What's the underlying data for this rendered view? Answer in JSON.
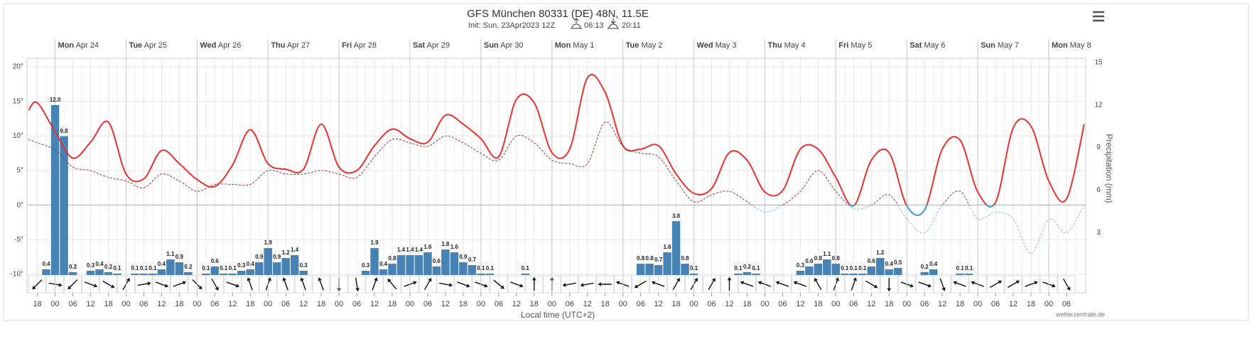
{
  "chart_data": {
    "type": "line",
    "title": "GFS München 80331 (DE) 48N, 11.5E",
    "subtitle": "Init: Sun, 23Apr2023 12Z",
    "sunrise": "06:13",
    "sunset": "20:11",
    "xlabel": "Local time (UTC+2)",
    "y2label": "Precipitation (mm)",
    "credit": "wetterzentrale.de",
    "xlim": [
      -9.5,
      348.5
    ],
    "ylim": [
      -10,
      20
    ],
    "y2lim": [
      0,
      15
    ],
    "yticks": [
      {
        "value": 20,
        "label": "20°"
      },
      {
        "value": 15,
        "label": "15°"
      },
      {
        "value": 10,
        "label": "10°"
      },
      {
        "value": 5,
        "label": "5°"
      },
      {
        "value": 0,
        "label": "0°"
      },
      {
        "value": -5,
        "label": "-5°"
      },
      {
        "value": -10,
        "label": "-10°"
      }
    ],
    "y2ticks": [
      3,
      6,
      9,
      12,
      15
    ],
    "grid": true,
    "days": [
      {
        "value": 0,
        "weekday": "Mon",
        "date": "Apr 24"
      },
      {
        "value": 24,
        "weekday": "Tue",
        "date": "Apr 25"
      },
      {
        "value": 48,
        "weekday": "Wed",
        "date": "Apr 26"
      },
      {
        "value": 72,
        "weekday": "Thu",
        "date": "Apr 27"
      },
      {
        "value": 96,
        "weekday": "Fri",
        "date": "Apr 28"
      },
      {
        "value": 120,
        "weekday": "Sat",
        "date": "Apr 29"
      },
      {
        "value": 144,
        "weekday": "Sun",
        "date": "Apr 30"
      },
      {
        "value": 168,
        "weekday": "Mon",
        "date": "May 1"
      },
      {
        "value": 192,
        "weekday": "Tue",
        "date": "May 2"
      },
      {
        "value": 216,
        "weekday": "Wed",
        "date": "May 3"
      },
      {
        "value": 240,
        "weekday": "Thu",
        "date": "May 4"
      },
      {
        "value": 264,
        "weekday": "Fri",
        "date": "May 5"
      },
      {
        "value": 288,
        "weekday": "Sat",
        "date": "May 6"
      },
      {
        "value": 312,
        "weekday": "Sun",
        "date": "May 7"
      },
      {
        "value": 336,
        "weekday": "Mon",
        "date": "May 8"
      }
    ],
    "xticks": [
      {
        "value": -6,
        "label": "18"
      },
      {
        "value": 0,
        "label": "00"
      },
      {
        "value": 6,
        "label": "06"
      },
      {
        "value": 12,
        "label": "12"
      },
      {
        "value": 18,
        "label": "18"
      },
      {
        "value": 24,
        "label": "00"
      },
      {
        "value": 30,
        "label": "06"
      },
      {
        "value": 36,
        "label": "12"
      },
      {
        "value": 42,
        "label": "18"
      },
      {
        "value": 48,
        "label": "00"
      },
      {
        "value": 54,
        "label": "06"
      },
      {
        "value": 60,
        "label": "12"
      },
      {
        "value": 66,
        "label": "18"
      },
      {
        "value": 72,
        "label": "00"
      },
      {
        "value": 78,
        "label": "06"
      },
      {
        "value": 84,
        "label": "12"
      },
      {
        "value": 90,
        "label": "18"
      },
      {
        "value": 96,
        "label": "00"
      },
      {
        "value": 102,
        "label": "06"
      },
      {
        "value": 108,
        "label": "12"
      },
      {
        "value": 114,
        "label": "18"
      },
      {
        "value": 120,
        "label": "00"
      },
      {
        "value": 126,
        "label": "06"
      },
      {
        "value": 132,
        "label": "12"
      },
      {
        "value": 138,
        "label": "18"
      },
      {
        "value": 144,
        "label": "00"
      },
      {
        "value": 150,
        "label": "06"
      },
      {
        "value": 156,
        "label": "12"
      },
      {
        "value": 162,
        "label": "18"
      },
      {
        "value": 168,
        "label": "00"
      },
      {
        "value": 174,
        "label": "06"
      },
      {
        "value": 180,
        "label": "12"
      },
      {
        "value": 186,
        "label": "18"
      },
      {
        "value": 192,
        "label": "00"
      },
      {
        "value": 198,
        "label": "06"
      },
      {
        "value": 204,
        "label": "12"
      },
      {
        "value": 210,
        "label": "18"
      },
      {
        "value": 216,
        "label": "00"
      },
      {
        "value": 222,
        "label": "06"
      },
      {
        "value": 228,
        "label": "12"
      },
      {
        "value": 234,
        "label": "18"
      },
      {
        "value": 240,
        "label": "00"
      },
      {
        "value": 246,
        "label": "06"
      },
      {
        "value": 252,
        "label": "12"
      },
      {
        "value": 258,
        "label": "18"
      },
      {
        "value": 264,
        "label": "00"
      },
      {
        "value": 270,
        "label": "06"
      },
      {
        "value": 276,
        "label": "12"
      },
      {
        "value": 282,
        "label": "18"
      },
      {
        "value": 288,
        "label": "00"
      },
      {
        "value": 294,
        "label": "06"
      },
      {
        "value": 300,
        "label": "12"
      },
      {
        "value": 306,
        "label": "18"
      },
      {
        "value": 312,
        "label": "00"
      },
      {
        "value": 318,
        "label": "06"
      },
      {
        "value": 324,
        "label": "12"
      },
      {
        "value": 330,
        "label": "18"
      },
      {
        "value": 336,
        "label": "00"
      },
      {
        "value": 342,
        "label": "06"
      }
    ],
    "wind_direction": [
      135,
      10,
      135,
      20,
      30,
      300,
      350,
      20,
      340,
      45,
      60,
      20,
      250,
      290,
      250,
      250,
      250,
      90,
      80,
      290,
      230,
      340,
      300,
      10,
      20,
      20,
      40,
      20,
      270,
      270,
      170,
      170,
      180,
      200,
      150,
      200,
      300,
      300,
      300,
      270,
      200,
      200,
      200,
      200,
      240,
      290,
      290,
      30,
      90,
      20,
      20,
      70,
      200,
      200,
      330,
      330,
      340,
      20,
      60
    ],
    "series": [
      {
        "color": "#e8312f",
        "color_below_zero": "#3a9ad9",
        "x": [
          -9,
          -6,
          0,
          6,
          12,
          18,
          24,
          30,
          36,
          42,
          48,
          54,
          60,
          66,
          72,
          78,
          84,
          90,
          96,
          102,
          108,
          114,
          120,
          126,
          132,
          138,
          144,
          150,
          156,
          162,
          168,
          174,
          180,
          186,
          192,
          198,
          204,
          210,
          216,
          222,
          228,
          234,
          240,
          246,
          252,
          258,
          264,
          270,
          276,
          282,
          288,
          294,
          300,
          306,
          312,
          318,
          324,
          330,
          336,
          342,
          348
        ],
        "values": [
          13.7,
          14.8,
          10.6,
          6.8,
          9.1,
          12,
          4.5,
          3.8,
          7.9,
          6,
          3.7,
          2.7,
          5.8,
          10.9,
          6,
          5.2,
          5.2,
          11.7,
          5.5,
          5,
          8.6,
          11,
          9.6,
          9.1,
          13,
          11.7,
          9.6,
          7,
          15.3,
          14.8,
          7.6,
          8.1,
          18.4,
          16.3,
          8.6,
          8.1,
          8.6,
          4.5,
          1.7,
          2.4,
          7.6,
          6.5,
          1.9,
          2.1,
          8.1,
          8.1,
          4,
          -0.1,
          6.5,
          7.6,
          -0.1,
          -0.7,
          8.1,
          9.4,
          1.9,
          0.4,
          11.2,
          11.4,
          3.5,
          0.9,
          11.7
        ]
      },
      {
        "color": "#8b3a3a",
        "color_below_zero": "#8fb8de",
        "style": "dashed",
        "x": [
          -9,
          -6,
          0,
          6,
          12,
          18,
          24,
          30,
          36,
          42,
          48,
          54,
          60,
          66,
          72,
          78,
          84,
          90,
          96,
          102,
          108,
          114,
          120,
          126,
          132,
          138,
          144,
          150,
          156,
          162,
          168,
          174,
          180,
          186,
          192,
          198,
          204,
          210,
          216,
          222,
          228,
          234,
          240,
          246,
          252,
          258,
          264,
          270,
          276,
          282,
          288,
          294,
          300,
          306,
          312,
          318,
          324,
          330,
          336,
          342,
          348
        ],
        "values": [
          9.5,
          9,
          8,
          5.5,
          5,
          4,
          3.5,
          2.5,
          4.5,
          3.5,
          2,
          3,
          3,
          3,
          5,
          4.5,
          4.5,
          5,
          4.5,
          4,
          7,
          9.5,
          9,
          8.5,
          10,
          9,
          7.5,
          6.5,
          10,
          9,
          6.5,
          6,
          6,
          12,
          8.5,
          7.5,
          7,
          3.5,
          0.5,
          1.5,
          2,
          0.5,
          -1,
          0,
          2,
          5,
          2,
          -0.5,
          0,
          1.5,
          -2,
          -4,
          0,
          2,
          -2,
          -1,
          -2,
          -7,
          -2,
          -4,
          0
        ]
      },
      {
        "type": "bar",
        "axis": "y2",
        "color": "#4682b4",
        "x": [
          -3,
          0,
          3,
          6,
          12,
          15,
          18,
          21,
          27,
          30,
          33,
          36,
          39,
          42,
          45,
          51,
          54,
          57,
          60,
          63,
          66,
          69,
          72,
          75,
          78,
          81,
          84,
          105,
          108,
          111,
          114,
          117,
          120,
          123,
          126,
          129,
          132,
          135,
          138,
          141,
          144,
          147,
          159,
          198,
          201,
          204,
          207,
          210,
          213,
          216,
          231,
          234,
          237,
          252,
          255,
          258,
          261,
          264,
          267,
          270,
          273,
          276,
          279,
          282,
          285,
          294,
          297,
          306,
          309
        ],
        "values": [
          0.4,
          12,
          9.8,
          0.2,
          0.3,
          0.4,
          0.2,
          0.1,
          0.1,
          0.1,
          0.1,
          0.4,
          1.1,
          0.9,
          0.2,
          0.1,
          0.6,
          0.1,
          0.1,
          0.3,
          0.4,
          0.9,
          1.9,
          0.9,
          1.2,
          1.4,
          0.3,
          0.3,
          1.9,
          0.4,
          0.8,
          1.4,
          1.4,
          1.4,
          1.6,
          0.6,
          1.8,
          1.6,
          0.9,
          0.7,
          0.1,
          0.1,
          0.1,
          0.8,
          0.8,
          0.7,
          1.6,
          3.8,
          0.8,
          0.1,
          0.1,
          0.2,
          0.1,
          0.3,
          0.6,
          0.8,
          1.1,
          0.8,
          0.1,
          0.1,
          0.1,
          0.6,
          1.2,
          0.4,
          0.5,
          0.2,
          0.4,
          0.1,
          0.1
        ],
        "value_labels": [
          "0.4",
          "12.0",
          "9.8",
          "0.2",
          "0.3",
          "0.4",
          "0.2",
          "0.1",
          "0.1",
          "0.1",
          "0.1",
          "0.4",
          "1.1",
          "0.9",
          "0.2",
          "0.1",
          "0.6",
          "0.1",
          "0.1",
          "0.3",
          "0.4",
          "0.9",
          "1.9",
          "0.9",
          "1.2",
          "1.4",
          "0.3",
          "0.3",
          "1.9",
          "0.4",
          "0.8",
          "1.4",
          "1.4",
          "1.4",
          "1.6",
          "0.6",
          "1.8",
          "1.6",
          "0.9",
          "0.7",
          "0.1",
          "0.1",
          "0.1",
          "0.8",
          "0.8",
          "0.7",
          "1.6",
          "3.8",
          "0.8",
          "0.1",
          "0.1",
          "0.2",
          "0.1",
          "0.3",
          "0.6",
          "0.8",
          "1.1",
          "0.8",
          "0.1",
          "0.1",
          "0.1",
          "0.6",
          "1.2",
          "0.4",
          "0.5",
          "0.2",
          "0.4",
          "0.1",
          "0.1"
        ]
      }
    ]
  }
}
